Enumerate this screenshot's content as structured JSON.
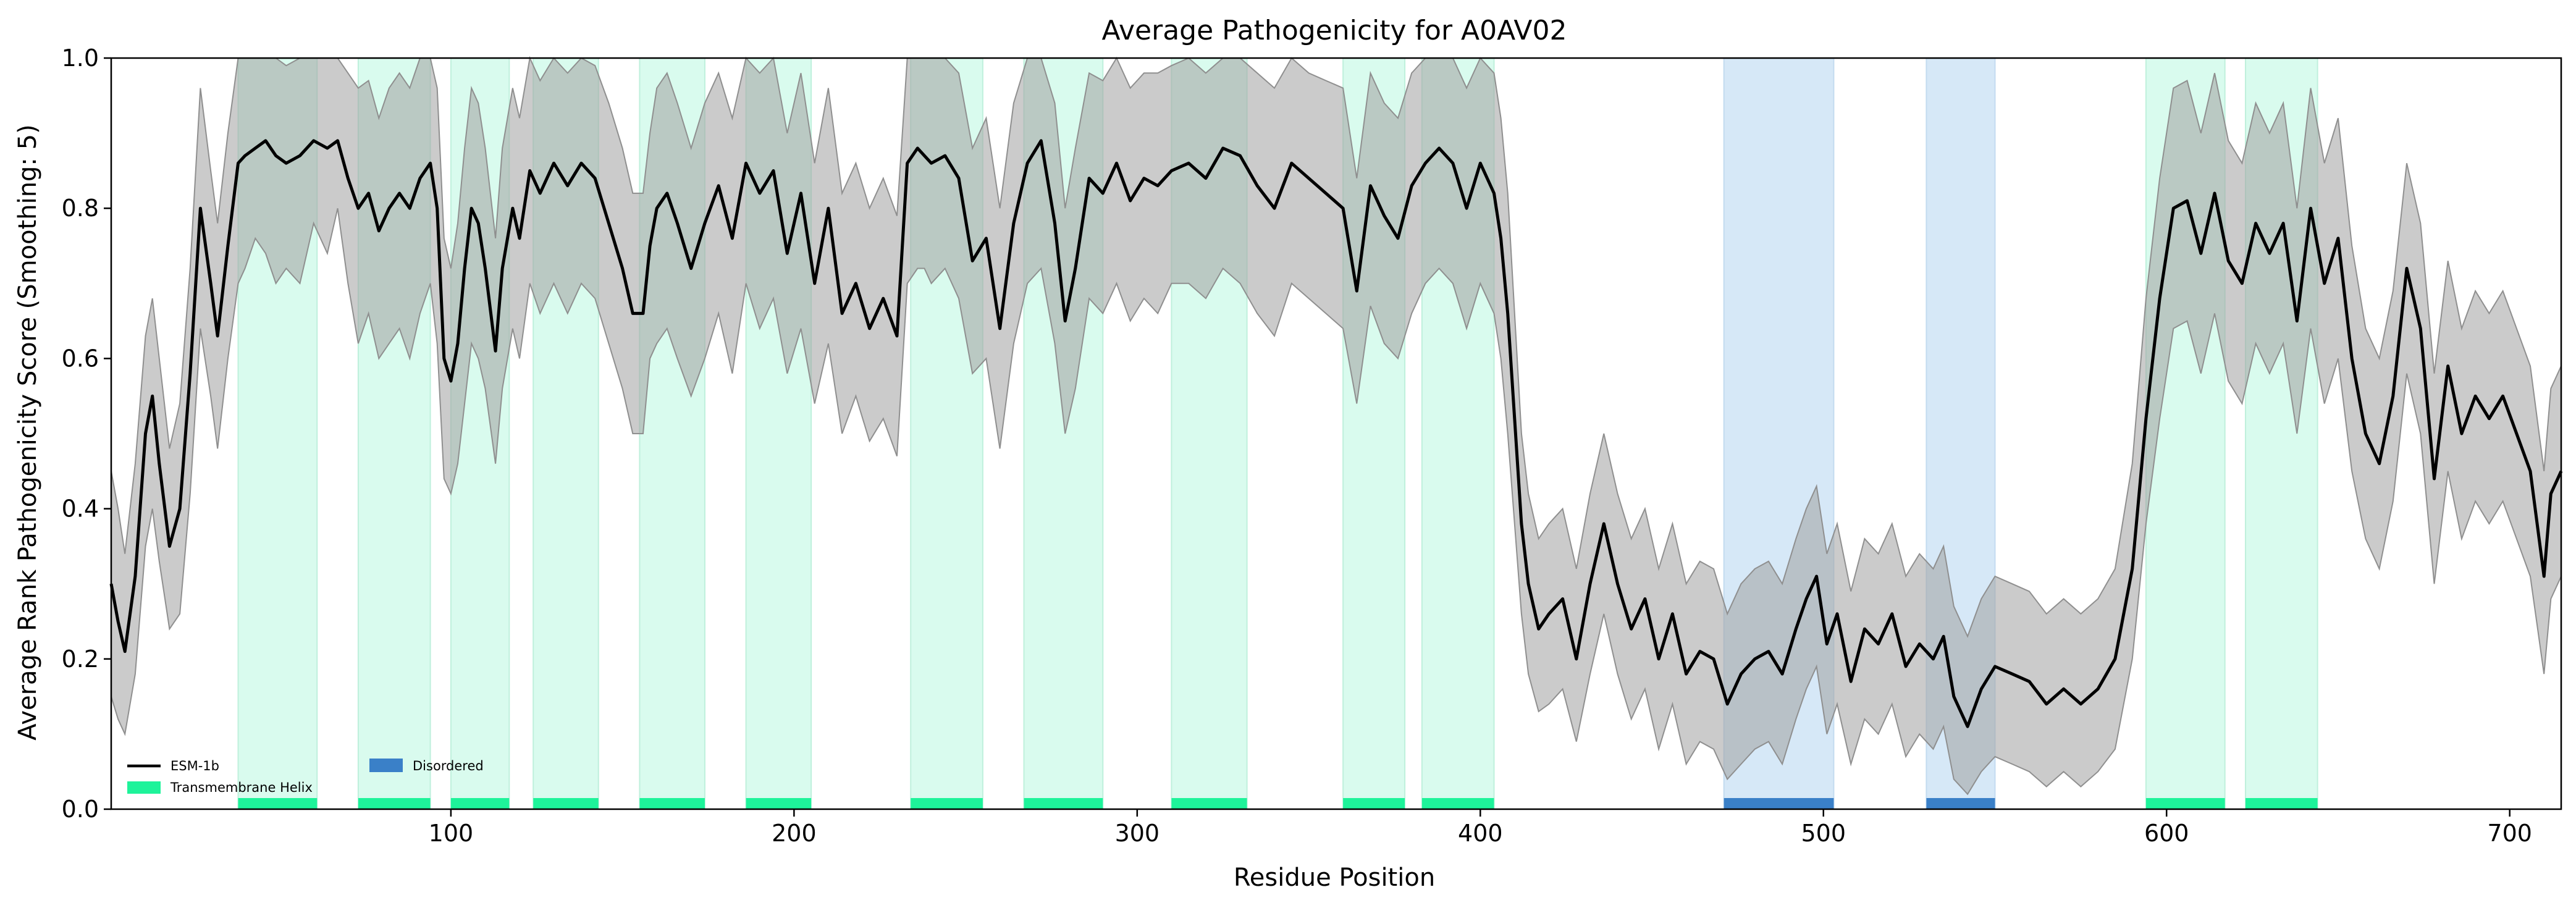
{
  "chart_data": {
    "type": "line",
    "title": "Average Pathogenicity for A0AV02",
    "xlabel": "Residue Position",
    "ylabel": "Average Rank Pathogenicity Score (Smoothing: 5)",
    "xlim": [
      1,
      715
    ],
    "ylim": [
      0,
      1.0
    ],
    "xticks": [
      100,
      200,
      300,
      400,
      500,
      600,
      700
    ],
    "yticks": [
      0.0,
      0.2,
      0.4,
      0.6,
      0.8,
      1.0
    ],
    "xtick_labels": [
      "100",
      "200",
      "300",
      "400",
      "500",
      "600",
      "700"
    ],
    "ytick_labels": [
      "0.0",
      "0.2",
      "0.4",
      "0.6",
      "0.8",
      "1.0"
    ],
    "grid": false,
    "legend_position": "lower-left",
    "colors": {
      "line": "#000000",
      "band": "#a0a0a0",
      "transmembrane_fill": "#d9fbee",
      "transmembrane_bar": "#1ef39a",
      "disordered_fill": "#d6e8f7",
      "disordered_bar": "#3a80c8"
    },
    "legend": [
      {
        "key": "esm",
        "label": "ESM-1b"
      },
      {
        "key": "tm",
        "label": "Transmembrane Helix"
      },
      {
        "key": "dis",
        "label": "Disordered"
      }
    ],
    "transmembrane_helices": [
      [
        38,
        61
      ],
      [
        73,
        94
      ],
      [
        100,
        117
      ],
      [
        124,
        143
      ],
      [
        155,
        174
      ],
      [
        186,
        205
      ],
      [
        234,
        255
      ],
      [
        267,
        290
      ],
      [
        310,
        332
      ],
      [
        360,
        378
      ],
      [
        383,
        404
      ],
      [
        594,
        617
      ],
      [
        623,
        644
      ]
    ],
    "disordered_regions": [
      [
        471,
        503
      ],
      [
        530,
        550
      ]
    ],
    "series": [
      {
        "name": "ESM-1b",
        "x": [
          1,
          3,
          5,
          8,
          11,
          13,
          15,
          18,
          21,
          24,
          27,
          30,
          32,
          35,
          38,
          40,
          43,
          46,
          49,
          52,
          56,
          60,
          64,
          67,
          70,
          73,
          76,
          79,
          82,
          85,
          88,
          91,
          94,
          96,
          98,
          100,
          102,
          104,
          106,
          108,
          110,
          113,
          115,
          118,
          120,
          123,
          126,
          130,
          134,
          138,
          142,
          146,
          150,
          153,
          156,
          158,
          160,
          163,
          166,
          170,
          174,
          178,
          182,
          186,
          190,
          194,
          198,
          202,
          206,
          210,
          214,
          218,
          222,
          226,
          230,
          233,
          236,
          238,
          240,
          244,
          248,
          252,
          256,
          260,
          264,
          268,
          272,
          276,
          279,
          282,
          286,
          290,
          294,
          298,
          302,
          306,
          310,
          315,
          320,
          325,
          330,
          335,
          340,
          345,
          350,
          355,
          360,
          364,
          368,
          372,
          376,
          380,
          384,
          388,
          392,
          396,
          400,
          404,
          406,
          408,
          410,
          412,
          414,
          417,
          420,
          424,
          428,
          432,
          436,
          440,
          444,
          448,
          452,
          456,
          460,
          464,
          468,
          472,
          476,
          480,
          484,
          488,
          492,
          495,
          498,
          501,
          504,
          508,
          512,
          516,
          520,
          524,
          528,
          532,
          535,
          538,
          542,
          546,
          550,
          555,
          560,
          565,
          570,
          575,
          580,
          585,
          590,
          594,
          598,
          602,
          606,
          610,
          614,
          618,
          622,
          626,
          630,
          634,
          638,
          642,
          646,
          650,
          654,
          658,
          662,
          666,
          670,
          674,
          678,
          682,
          686,
          690,
          694,
          698,
          702,
          706,
          710,
          712,
          715
        ],
        "values": [
          0.3,
          0.25,
          0.21,
          0.31,
          0.5,
          0.55,
          0.46,
          0.35,
          0.4,
          0.58,
          0.8,
          0.7,
          0.63,
          0.75,
          0.86,
          0.87,
          0.88,
          0.89,
          0.87,
          0.86,
          0.87,
          0.89,
          0.88,
          0.89,
          0.84,
          0.8,
          0.82,
          0.77,
          0.8,
          0.82,
          0.8,
          0.84,
          0.86,
          0.8,
          0.6,
          0.57,
          0.62,
          0.72,
          0.8,
          0.78,
          0.72,
          0.61,
          0.72,
          0.8,
          0.76,
          0.85,
          0.82,
          0.86,
          0.83,
          0.86,
          0.84,
          0.78,
          0.72,
          0.66,
          0.66,
          0.75,
          0.8,
          0.82,
          0.78,
          0.72,
          0.78,
          0.83,
          0.76,
          0.86,
          0.82,
          0.85,
          0.74,
          0.82,
          0.7,
          0.8,
          0.66,
          0.7,
          0.64,
          0.68,
          0.63,
          0.86,
          0.88,
          0.87,
          0.86,
          0.87,
          0.84,
          0.73,
          0.76,
          0.64,
          0.78,
          0.86,
          0.89,
          0.78,
          0.65,
          0.72,
          0.84,
          0.82,
          0.86,
          0.81,
          0.84,
          0.83,
          0.85,
          0.86,
          0.84,
          0.88,
          0.87,
          0.83,
          0.8,
          0.86,
          0.84,
          0.82,
          0.8,
          0.69,
          0.83,
          0.79,
          0.76,
          0.83,
          0.86,
          0.88,
          0.86,
          0.8,
          0.86,
          0.82,
          0.76,
          0.66,
          0.52,
          0.38,
          0.3,
          0.24,
          0.26,
          0.28,
          0.2,
          0.3,
          0.38,
          0.3,
          0.24,
          0.28,
          0.2,
          0.26,
          0.18,
          0.21,
          0.2,
          0.14,
          0.18,
          0.2,
          0.21,
          0.18,
          0.24,
          0.28,
          0.31,
          0.22,
          0.26,
          0.17,
          0.24,
          0.22,
          0.26,
          0.19,
          0.22,
          0.2,
          0.23,
          0.15,
          0.11,
          0.16,
          0.19,
          0.18,
          0.17,
          0.14,
          0.16,
          0.14,
          0.16,
          0.2,
          0.32,
          0.52,
          0.68,
          0.8,
          0.81,
          0.74,
          0.82,
          0.73,
          0.7,
          0.78,
          0.74,
          0.78,
          0.65,
          0.8,
          0.7,
          0.76,
          0.6,
          0.5,
          0.46,
          0.55,
          0.72,
          0.64,
          0.44,
          0.59,
          0.5,
          0.55,
          0.52,
          0.55,
          0.5,
          0.45,
          0.31,
          0.42,
          0.45
        ],
        "lower": [
          0.15,
          0.12,
          0.1,
          0.18,
          0.35,
          0.4,
          0.33,
          0.24,
          0.26,
          0.42,
          0.64,
          0.55,
          0.48,
          0.6,
          0.7,
          0.72,
          0.76,
          0.74,
          0.7,
          0.72,
          0.7,
          0.78,
          0.74,
          0.8,
          0.7,
          0.62,
          0.66,
          0.6,
          0.62,
          0.64,
          0.6,
          0.66,
          0.7,
          0.62,
          0.44,
          0.42,
          0.46,
          0.54,
          0.62,
          0.6,
          0.56,
          0.46,
          0.56,
          0.64,
          0.6,
          0.7,
          0.66,
          0.7,
          0.66,
          0.7,
          0.68,
          0.62,
          0.56,
          0.5,
          0.5,
          0.6,
          0.62,
          0.64,
          0.6,
          0.55,
          0.6,
          0.66,
          0.58,
          0.7,
          0.64,
          0.68,
          0.58,
          0.64,
          0.54,
          0.62,
          0.5,
          0.55,
          0.49,
          0.52,
          0.47,
          0.7,
          0.72,
          0.72,
          0.7,
          0.72,
          0.68,
          0.58,
          0.6,
          0.48,
          0.62,
          0.7,
          0.72,
          0.62,
          0.5,
          0.56,
          0.68,
          0.66,
          0.7,
          0.65,
          0.68,
          0.66,
          0.7,
          0.7,
          0.68,
          0.72,
          0.7,
          0.66,
          0.63,
          0.7,
          0.68,
          0.66,
          0.64,
          0.54,
          0.67,
          0.62,
          0.6,
          0.66,
          0.7,
          0.72,
          0.7,
          0.64,
          0.7,
          0.66,
          0.6,
          0.5,
          0.38,
          0.26,
          0.18,
          0.13,
          0.14,
          0.16,
          0.09,
          0.18,
          0.26,
          0.18,
          0.12,
          0.16,
          0.08,
          0.14,
          0.06,
          0.09,
          0.08,
          0.04,
          0.06,
          0.08,
          0.09,
          0.06,
          0.12,
          0.16,
          0.19,
          0.1,
          0.14,
          0.06,
          0.12,
          0.1,
          0.14,
          0.07,
          0.1,
          0.08,
          0.11,
          0.04,
          0.02,
          0.05,
          0.07,
          0.06,
          0.05,
          0.03,
          0.05,
          0.03,
          0.05,
          0.08,
          0.2,
          0.38,
          0.52,
          0.64,
          0.65,
          0.58,
          0.66,
          0.57,
          0.54,
          0.62,
          0.58,
          0.62,
          0.5,
          0.64,
          0.54,
          0.6,
          0.45,
          0.36,
          0.32,
          0.41,
          0.58,
          0.5,
          0.3,
          0.45,
          0.36,
          0.41,
          0.38,
          0.41,
          0.36,
          0.31,
          0.18,
          0.28,
          0.31
        ],
        "upper": [
          0.45,
          0.4,
          0.34,
          0.46,
          0.63,
          0.68,
          0.6,
          0.48,
          0.54,
          0.72,
          0.96,
          0.85,
          0.78,
          0.9,
          1.0,
          1.0,
          1.0,
          1.0,
          1.0,
          0.99,
          1.0,
          1.0,
          1.0,
          1.0,
          0.98,
          0.96,
          0.97,
          0.92,
          0.96,
          0.98,
          0.96,
          1.0,
          1.0,
          0.96,
          0.76,
          0.72,
          0.78,
          0.88,
          0.96,
          0.94,
          0.88,
          0.76,
          0.88,
          0.96,
          0.92,
          1.0,
          0.97,
          1.0,
          0.98,
          1.0,
          0.99,
          0.94,
          0.88,
          0.82,
          0.82,
          0.9,
          0.96,
          0.98,
          0.94,
          0.88,
          0.94,
          0.98,
          0.92,
          1.0,
          0.98,
          1.0,
          0.9,
          0.98,
          0.86,
          0.96,
          0.82,
          0.86,
          0.8,
          0.84,
          0.79,
          1.0,
          1.0,
          1.0,
          1.0,
          1.0,
          0.98,
          0.88,
          0.92,
          0.8,
          0.94,
          1.0,
          1.0,
          0.94,
          0.8,
          0.88,
          0.98,
          0.97,
          1.0,
          0.96,
          0.98,
          0.98,
          0.99,
          1.0,
          0.98,
          1.0,
          1.0,
          0.98,
          0.96,
          1.0,
          0.98,
          0.97,
          0.96,
          0.84,
          0.98,
          0.94,
          0.92,
          0.98,
          1.0,
          1.0,
          1.0,
          0.96,
          1.0,
          0.98,
          0.92,
          0.82,
          0.66,
          0.5,
          0.42,
          0.36,
          0.38,
          0.4,
          0.32,
          0.42,
          0.5,
          0.42,
          0.36,
          0.4,
          0.32,
          0.38,
          0.3,
          0.33,
          0.32,
          0.26,
          0.3,
          0.32,
          0.33,
          0.3,
          0.36,
          0.4,
          0.43,
          0.34,
          0.38,
          0.29,
          0.36,
          0.34,
          0.38,
          0.31,
          0.34,
          0.32,
          0.35,
          0.27,
          0.23,
          0.28,
          0.31,
          0.3,
          0.29,
          0.26,
          0.28,
          0.26,
          0.28,
          0.32,
          0.46,
          0.68,
          0.84,
          0.96,
          0.97,
          0.9,
          0.98,
          0.89,
          0.86,
          0.94,
          0.9,
          0.94,
          0.8,
          0.96,
          0.86,
          0.92,
          0.75,
          0.64,
          0.6,
          0.69,
          0.86,
          0.78,
          0.58,
          0.73,
          0.64,
          0.69,
          0.66,
          0.69,
          0.64,
          0.59,
          0.45,
          0.56,
          0.59
        ]
      }
    ]
  }
}
